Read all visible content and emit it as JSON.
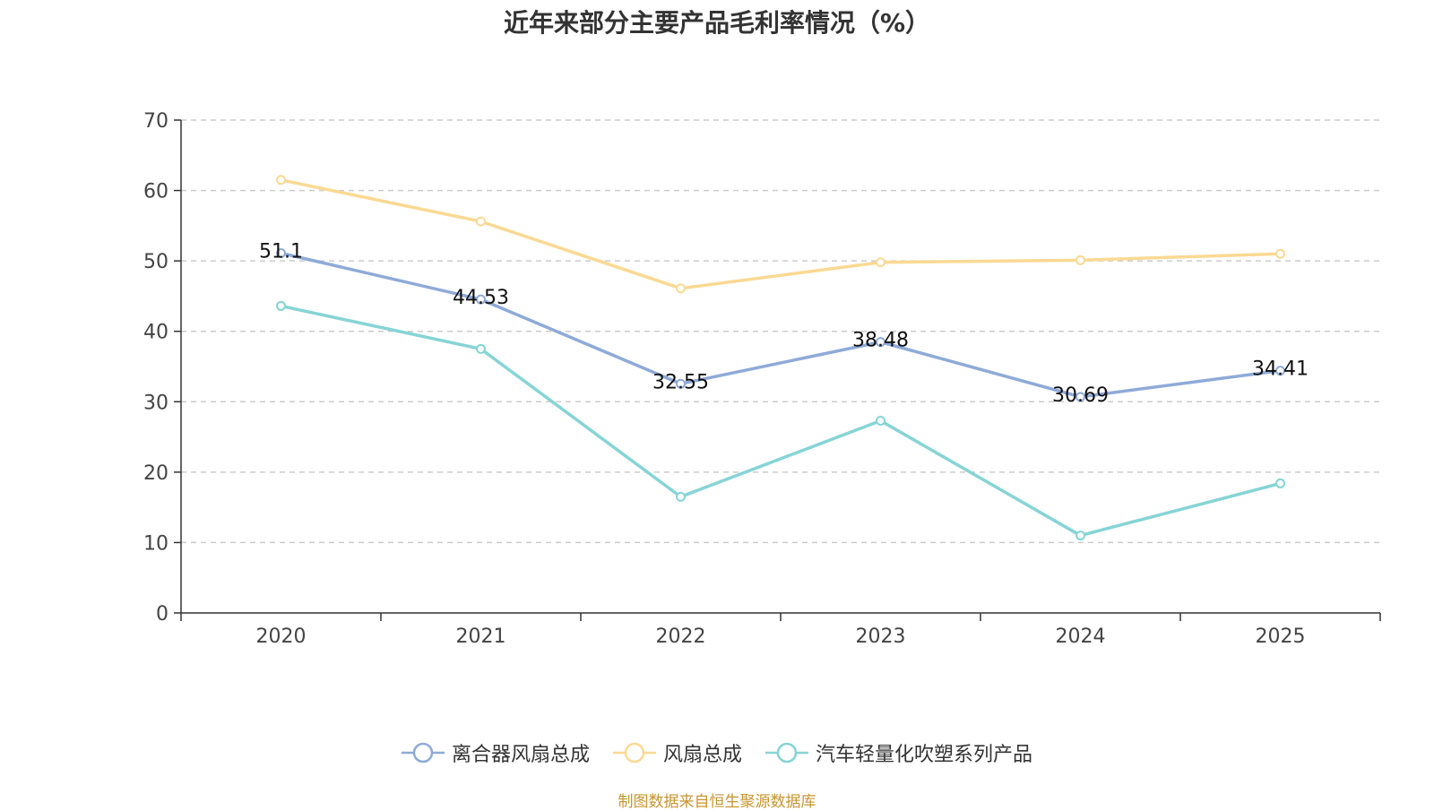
{
  "chart_data": {
    "type": "line",
    "title": "近年来部分主要产品毛利率情况（%）",
    "xlabel": "",
    "ylabel": "",
    "categories": [
      "2020",
      "2021",
      "2022",
      "2023",
      "2024",
      "2025"
    ],
    "ylim": [
      0,
      70
    ],
    "yticks": [
      0,
      10,
      20,
      30,
      40,
      50,
      60,
      70
    ],
    "grid": true,
    "legend_position": "bottom",
    "series": [
      {
        "name": "离合器风扇总成",
        "color": "#8eaad8",
        "values": [
          51.1,
          44.53,
          32.55,
          38.48,
          30.69,
          34.41
        ],
        "labels": [
          "51.1",
          "44.53",
          "32.55",
          "38.48",
          "30.69",
          "34.41"
        ]
      },
      {
        "name": "风扇总成",
        "color": "#fbd993",
        "values": [
          61.5,
          55.6,
          46.1,
          49.8,
          50.1,
          51.0
        ]
      },
      {
        "name": "汽车轻量化吹塑系列产品",
        "color": "#86d4d6",
        "values": [
          43.6,
          37.5,
          16.5,
          27.3,
          11.0,
          18.4
        ]
      }
    ]
  },
  "source_note": "制图数据来自恒生聚源数据库"
}
